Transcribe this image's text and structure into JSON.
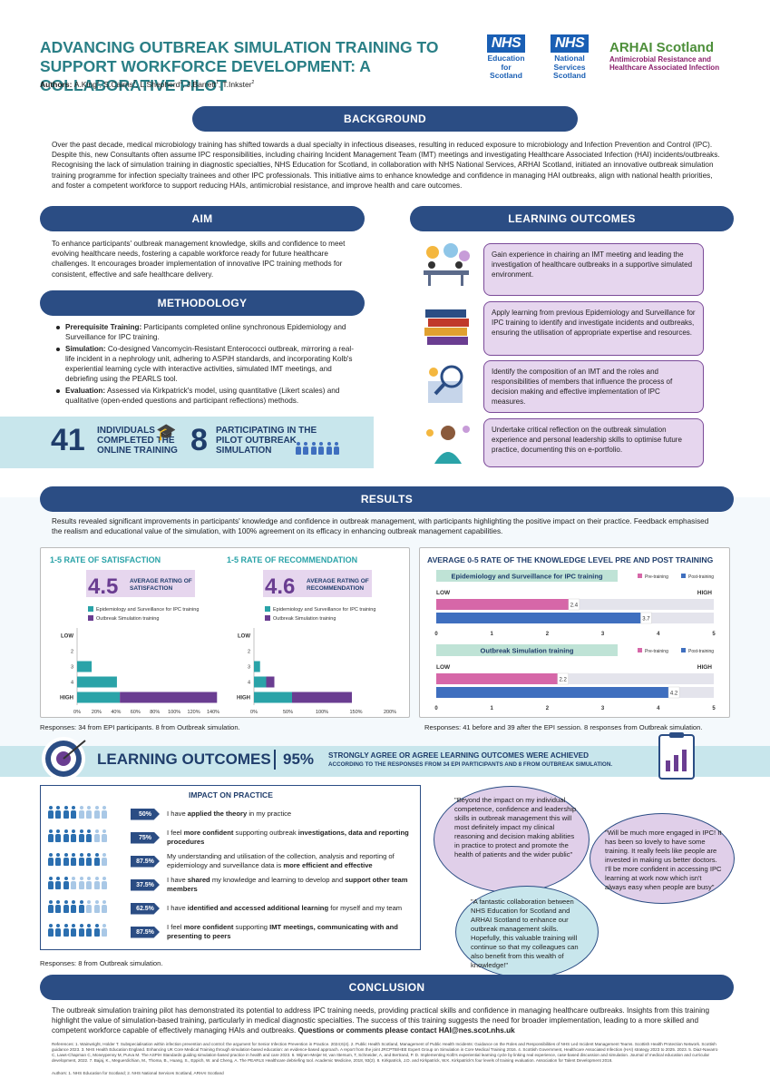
{
  "header": {
    "title": "ADVANCING OUTBREAK SIMULATION TRAINING TO SUPPORT WORKFORCE DEVELOPMENT: A COLLABORATIVE PILOT",
    "authors_label": "Authors:",
    "authors": [
      {
        "name": "A.King",
        "sup": "1"
      },
      {
        "name": "S.Cairns",
        "sup": "2"
      },
      {
        "name": "L.Shepherd",
        "sup": "1"
      },
      {
        "name": "J.Barrett",
        "sup": "1"
      },
      {
        "name": "T.Inkster",
        "sup": "2"
      }
    ],
    "logos": {
      "nhs_education": {
        "mark": "NHS",
        "lines": [
          "Education",
          "for",
          "Scotland"
        ]
      },
      "nhs_nss": {
        "mark": "NHS",
        "lines": [
          "National",
          "Services",
          "Scotland"
        ]
      },
      "arhai": {
        "mark": "ARHAI Scotland",
        "lines": [
          "Antimicrobial Resistance and",
          "Healthcare Associated Infection"
        ]
      }
    }
  },
  "background": {
    "heading": "BACKGROUND",
    "text": "Over the past decade, medical microbiology training has shifted towards a dual specialty in infectious diseases, resulting in reduced exposure to microbiology and Infection Prevention and Control (IPC). Despite this, new Consultants often assume IPC responsibilities, including chairing Incident Management Team (IMT) meetings and investigating Healthcare Associated Infection (HAI) incidents/outbreaks. Recognising the lack of simulation training in diagnostic specialties, NHS Education for Scotland, in collaboration with NHS National Services, ARHAI Scotland, initiated an innovative outbreak simulation training programme for infection specialty trainees and other IPC professionals. This initiative aims to enhance knowledge and confidence in managing HAI outbreaks, align with national health priorities, and foster a competent workforce to support reducing HAIs, antimicrobial resistance, and improve health and care outcomes."
  },
  "aim": {
    "heading": "AIM",
    "text": "To enhance participants' outbreak management knowledge, skills and confidence to meet evolving healthcare needs, fostering a capable workforce ready for future healthcare challenges. It encourages broader implementation of innovative IPC training methods for consistent, effective and safe healthcare delivery."
  },
  "methodology": {
    "heading": "METHODOLOGY",
    "items": [
      {
        "label": "Prerequisite Training:",
        "text": " Participants completed online synchronous Epidemiology and Surveillance for IPC training."
      },
      {
        "label": "Simulation:",
        "text": " Co-designed Vancomycin-Resistant Enterococci outbreak, mirroring a real-life incident in a nephrology unit, adhering to ASPiH standards, and incorporating Kolb's experiential learning cycle with interactive activities, simulated IMT meetings, and debriefing using the PEARLS tool."
      },
      {
        "label": "Evaluation:",
        "text": " Assessed via Kirkpatrick's model, using quantitative (Likert scales) and qualitative (open-ended questions and participant reflections) methods."
      }
    ]
  },
  "stats": {
    "online_num": "41",
    "online_label": "INDIVIDUALS COMPLETED THE ONLINE TRAINING",
    "pilot_num": "8",
    "pilot_label": "PARTICIPATING IN THE PILOT OUTBREAK SIMULATION"
  },
  "learning_outcomes": {
    "heading": "LEARNING OUTCOMES",
    "items": [
      "Gain experience in chairing an IMT meeting and leading the investigation of healthcare outbreaks in a supportive simulated environment.",
      "Apply learning from previous Epidemiology and Surveillance for IPC training to identify and investigate incidents and outbreaks, ensuring the utilisation of appropriate expertise and resources.",
      "Identify the composition of an IMT and the roles and responsibilities of members that influence the process of decision making and effective implementation of IPC measures.",
      "Undertake critical reflection on the outbreak simulation experience and personal leadership skills to optimise future practice, documenting this on e-portfolio."
    ]
  },
  "results": {
    "heading": "RESULTS",
    "text": "Results revealed significant improvements in participants' knowledge and confidence in outbreak management, with participants highlighting the positive impact on their practice. Feedback emphasised the realism and educational value of the simulation, with 100% agreement on its efficacy in enhancing outbreak management capabilities.",
    "left_responses": "Responses: 34 from EPI participants. 8 from Outbreak simulation.",
    "right_responses": "Responses: 41 before and 39 after the EPI session. 8 responses from Outbreak simulation."
  },
  "chart_data": [
    {
      "type": "bar",
      "title": "1-5 RATE OF SATISFACTION",
      "headline_value": "4.5",
      "headline_label": "AVERAGE RATING OF SATISFACTION",
      "categories": [
        "LOW",
        "2",
        "3",
        "4",
        "HIGH"
      ],
      "series": [
        {
          "name": "Epidemiology and Surveillance for IPC training",
          "color": "#2aa3a8",
          "values": [
            0,
            0,
            15,
            41,
            44
          ]
        },
        {
          "name": "Outbreak Simulation training",
          "color": "#6a3d91",
          "values": [
            0,
            0,
            0,
            0,
            100
          ]
        }
      ],
      "x_ticks": [
        "0%",
        "20%",
        "40%",
        "60%",
        "80%",
        "100%",
        "120%",
        "140%"
      ],
      "xlim": [
        0,
        140
      ]
    },
    {
      "type": "bar",
      "title": "1-5 RATE OF RECOMMENDATION",
      "headline_value": "4.6",
      "headline_label": "AVERAGE RATING OF RECOMMENDATION",
      "categories": [
        "LOW",
        "2",
        "3",
        "4",
        "HIGH"
      ],
      "series": [
        {
          "name": "Epidemiology and Surveillance for IPC training",
          "color": "#2aa3a8",
          "values": [
            0,
            0,
            9,
            18,
            56
          ]
        },
        {
          "name": "Outbreak Simulation training",
          "color": "#6a3d91",
          "values": [
            0,
            0,
            0,
            12,
            88
          ]
        }
      ],
      "x_ticks": [
        "0%",
        "50%",
        "100%",
        "150%",
        "200%"
      ],
      "xlim": [
        0,
        200
      ]
    },
    {
      "type": "bar",
      "title": "AVERAGE 0-5 RATE OF THE KNOWLEDGE LEVEL PRE AND POST TRAINING",
      "groups": [
        {
          "name": "Epidemiology and Surveillance for IPC training",
          "pre": 2.4,
          "post": 3.7
        },
        {
          "name": "Outbreak Simulation training",
          "pre": 2.2,
          "post": 4.2
        }
      ],
      "series": [
        {
          "name": "Pre-training",
          "color": "#d667a8"
        },
        {
          "name": "Post-training",
          "color": "#3f6fbf"
        }
      ],
      "low_label": "LOW",
      "high_label": "HIGH",
      "x_ticks": [
        "0",
        "1",
        "2",
        "3",
        "4",
        "5"
      ],
      "xlim": [
        0,
        5
      ]
    }
  ],
  "lo_banner": {
    "heading": "LEARNING OUTCOMES",
    "pct": "95%",
    "line1": "STRONGLY AGREE OR AGREE LEARNING OUTCOMES WERE ACHIEVED",
    "line2": "ACCORDING TO THE RESPONSES FROM 34 EPI PARTICIPANTS AND 8 FROM OUTBREAK SIMULATION."
  },
  "impact": {
    "heading": "IMPACT ON PRACTICE",
    "responses": "Responses: 8 from Outbreak simulation.",
    "items": [
      {
        "pct": "50%",
        "filled": 4,
        "pre": "I have ",
        "bold": "applied the theory",
        "post": " in my practice",
        "bold2": "",
        "post2": ""
      },
      {
        "pct": "75%",
        "filled": 6,
        "pre": "I feel ",
        "bold": "more confident",
        "post": " supporting outbreak ",
        "bold2": "investigations, data and reporting procedures",
        "post2": ""
      },
      {
        "pct": "87.5%",
        "filled": 7,
        "pre": "My understanding and utilisation of the collection, analysis and reporting of epidemiology and surveillance data is ",
        "bold": "more efficient and effective",
        "post": "",
        "bold2": "",
        "post2": ""
      },
      {
        "pct": "37.5%",
        "filled": 3,
        "pre": "I have ",
        "bold": "shared",
        "post": " my knowledge and learning to develop and ",
        "bold2": "support other team members",
        "post2": ""
      },
      {
        "pct": "62.5%",
        "filled": 5,
        "pre": "I have ",
        "bold": "identified and accessed additional learning",
        "post": " for myself and my team",
        "bold2": "",
        "post2": ""
      },
      {
        "pct": "87.5%",
        "filled": 7,
        "pre": "I feel ",
        "bold": "more confident",
        "post": " supporting ",
        "bold2": "IMT meetings, communicating with and presenting to peers",
        "post2": ""
      }
    ]
  },
  "quotes": [
    "\"Beyond the impact on my individual competence, confidence and leadership skills in outbreak management this will most definitely impact my clinical reasoning and decision making abilities in practice to protect and promote the health of patients and the wider public\"",
    "\"Will be much more engaged in IPC! It has been so lovely to have some training. It really feels like people are invested in making us better doctors. I'll be more confident in accessing IPC learning at work now which isn't always easy when people are busy\"",
    "\"A fantastic collaboration between NHS Education for Scotland and ARHAI Scotland to enhance our outbreak management skills. Hopefully, this valuable training will continue so that my colleagues can also benefit from this wealth of knowledge!\""
  ],
  "conclusion": {
    "heading": "CONCLUSION",
    "text": "The outbreak simulation training pilot has demonstrated its potential to address IPC training needs, providing practical skills and confidence in managing healthcare outbreaks. Insights from this training highlight the value of simulation-based training, particularly in medical diagnostic specialties. The success of this training suggests the need for broader implementation, leading to a more skilled and competent workforce capable of effectively managing HAIs and outbreaks.",
    "contact": " Questions or comments please contact HAI@nes.scot.nhs.uk"
  },
  "references": {
    "text": "References: 1. Wainwright, Holder T. Subspecialisation within infection prevention and control: the argument for Senior Infection Prevention in Practice. 2024;6(4). 2. Public Health Scotland, Management of Public Health Incidents: Guidance on the Roles and Responsibilities of NHS Led Incident Management Teams. Scottish Health Protection Network. Scottish guidance 2023. 3. NHS Health Education England. Enhancing UK Core Medical Training through simulation-based education: an evidence-based approach. A report from the joint JRCPTB/HEE Expert Group on Simulation in Core Medical Training 2016. 4. Scottish Government, Healthcare Associated Infection (HAI) strategy 2023 to 2025. 2023. 5. Diaz-Navarro C, Laws-Chapman C, Moneypenny M, Purva M. The ASPiH Standards guiding simulation-based practice in health and care 2023. 6. Wijnen-Meijer M, van Ittersum, T, Schneider, A, and Bertrand, P. D. Implementing Kolb's experiential learning cycle by linking real experience, case-based discussion and simulation. Journal of medical education and curricular development, 2022. 7. Bajaj, K., Meguerdichian, M., Thoma, B., Huang, S., Eppich, W. and Cheng, A. The PEARLS Healthcare debriefing tool. Academic Medicine, 2018, 93(2). 8. Kirkpatrick, J.D. and Kirkpatrick, W.K. Kirkpatrick's four levels of training evaluation. Association for Talent Development 2016.",
    "authors_aff": "Authors: 1. NHS Education for Scotland; 2. NHS National Services Scotland, ARHAI Scotland"
  }
}
